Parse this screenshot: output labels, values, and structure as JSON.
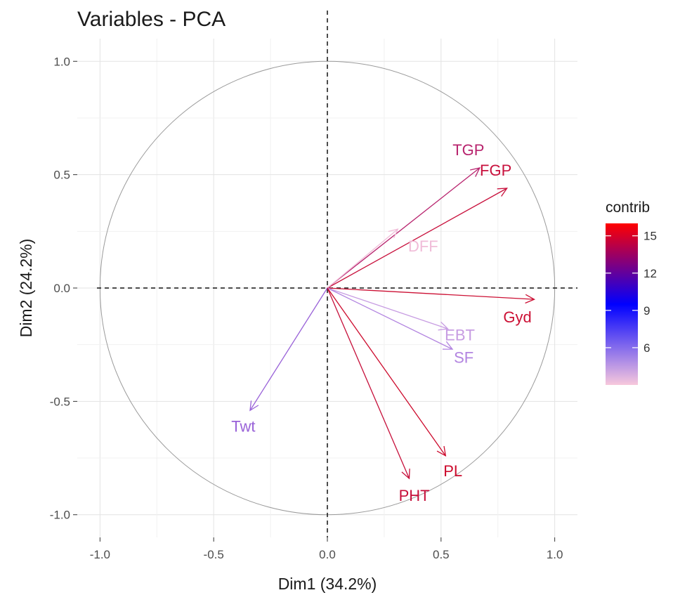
{
  "chart_data": {
    "type": "scatter",
    "title": "Variables - PCA",
    "xlabel": "Dim1 (34.2%)",
    "ylabel": "Dim2 (24.2%)",
    "xlim": [
      -1.1,
      1.1
    ],
    "ylim": [
      -1.1,
      1.1
    ],
    "x_ticks": [
      -1.0,
      -0.5,
      0.0,
      0.5,
      1.0
    ],
    "y_ticks": [
      -1.0,
      -0.5,
      0.0,
      0.5,
      1.0
    ],
    "x_tick_labels": [
      "-1.0",
      "-0.5",
      "0.0",
      "0.5",
      "1.0"
    ],
    "y_tick_labels": [
      "-1.0",
      "-0.5",
      "0.0",
      "0.5",
      "1.0"
    ],
    "grid": true,
    "correlation_circle": true,
    "variables": [
      {
        "label": "TGP",
        "x": 0.67,
        "y": 0.53,
        "color": "#b8246e"
      },
      {
        "label": "FGP",
        "x": 0.79,
        "y": 0.44,
        "color": "#c8103c"
      },
      {
        "label": "DFF",
        "x": 0.31,
        "y": 0.26,
        "color": "#f0bcd8"
      },
      {
        "label": "Gyd",
        "x": 0.91,
        "y": -0.05,
        "color": "#cc1034"
      },
      {
        "label": "EBT",
        "x": 0.53,
        "y": -0.18,
        "color": "#c79ce2"
      },
      {
        "label": "SF",
        "x": 0.55,
        "y": -0.27,
        "color": "#b284e0"
      },
      {
        "label": "Twt",
        "x": -0.34,
        "y": -0.54,
        "color": "#9962d8"
      },
      {
        "label": "PL",
        "x": 0.52,
        "y": -0.74,
        "color": "#cc0a2c"
      },
      {
        "label": "PHT",
        "x": 0.36,
        "y": -0.84,
        "color": "#c60f3a"
      }
    ],
    "legend": {
      "title": "contrib",
      "position": "right",
      "ticks": [
        {
          "label": "15",
          "value": 15
        },
        {
          "label": "12",
          "value": 12
        },
        {
          "label": "9",
          "value": 9
        },
        {
          "label": "6",
          "value": 6
        }
      ],
      "range": [
        3,
        16
      ],
      "colors": [
        "#ff0000",
        "#0000ff",
        "#f7c8dc"
      ]
    }
  }
}
